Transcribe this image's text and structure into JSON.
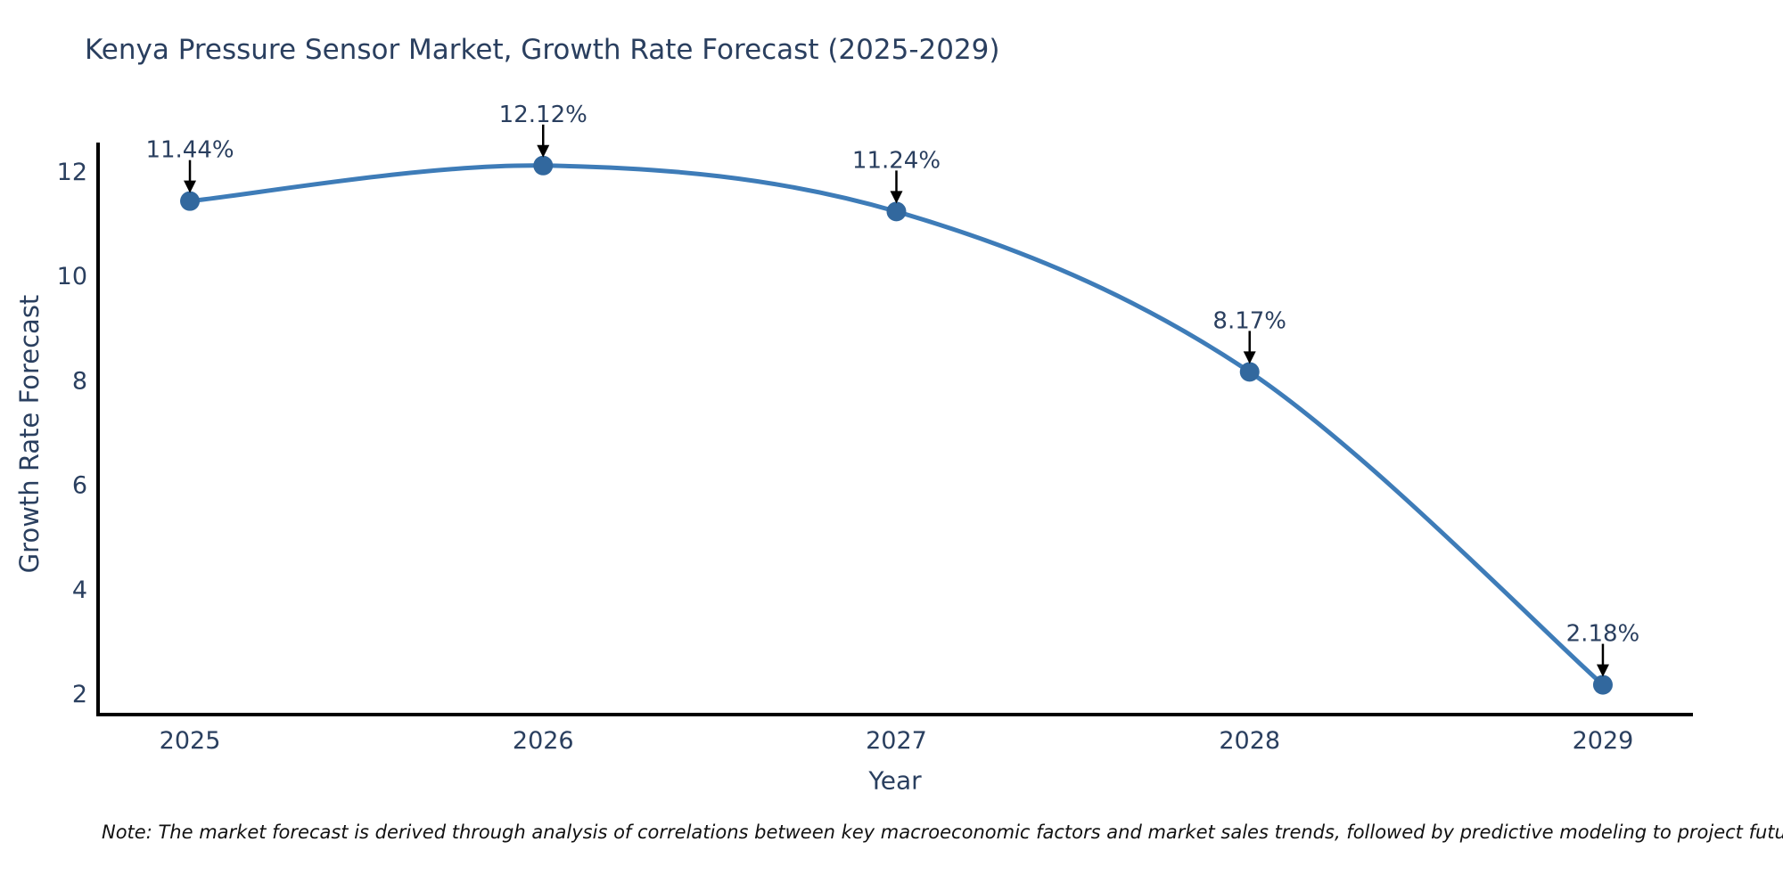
{
  "note": "Note: The market forecast is derived through analysis of correlations between key macroeconomic factors and market sales trends, followed by predictive modeling to project future sales",
  "colors": {
    "line": "#3e7cb8",
    "marker": "#32689e",
    "axis": "#000000",
    "text": "#2a3f5f",
    "annotation_text": "#2a3f5f",
    "arrow": "#000000",
    "note_text": "#111111",
    "background": "#ffffff"
  },
  "chart_data": {
    "type": "line",
    "title": "Kenya Pressure Sensor Market, Growth Rate Forecast (2025-2029)",
    "xlabel": "Year",
    "ylabel": "Growth Rate Forecast",
    "x": [
      2025,
      2026,
      2027,
      2028,
      2029
    ],
    "xticks": [
      "2025",
      "2026",
      "2027",
      "2028",
      "2029"
    ],
    "series": [
      {
        "name": "Growth Rate Forecast",
        "values": [
          11.44,
          12.12,
          11.24,
          8.17,
          2.18
        ]
      }
    ],
    "point_labels": [
      "11.44%",
      "12.12%",
      "11.24%",
      "8.17%",
      "2.18%"
    ],
    "yticks": [
      2,
      4,
      6,
      8,
      10,
      12
    ],
    "xlim": [
      2024.74,
      2029.255
    ],
    "ylim": [
      1.61,
      12.56
    ],
    "line_shape": "spline",
    "grid": false,
    "legend_position": "none",
    "annotations": "value labels with downward arrows above each point"
  }
}
